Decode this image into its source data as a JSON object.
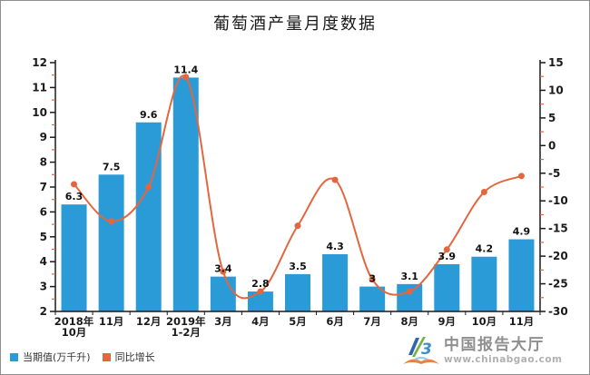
{
  "watermark": {
    "name": "中国报告大厅",
    "url": "www.chinabgao.com"
  },
  "colors": {
    "bar": "#2b9bd8",
    "line": "#e2673f",
    "axis": "#1a1a1a",
    "minor_tick": "#e8604c",
    "bar_label": "#111111",
    "tick_label": "#1a1a1a",
    "legend_text": "#333333",
    "logo_blue": "#2e66ae",
    "logo_green": "#76b043",
    "logo_light_blue": "#8ecfe8",
    "logo_orange": "#ef8140",
    "border": "#8f8f8f"
  },
  "chart_data": {
    "type": "bar+line",
    "title": "葡萄酒产量月度数据",
    "categories": [
      "2018年\n10月",
      "11月",
      "12月",
      "2019年\n1-2月",
      "3月",
      "4月",
      "5月",
      "6月",
      "7月",
      "8月",
      "9月",
      "10月",
      "11月"
    ],
    "series": [
      {
        "name": "当期值(万千升)",
        "type": "bar",
        "axis": "left",
        "color": "#2b9bd8",
        "values": [
          6.3,
          7.5,
          9.6,
          11.4,
          3.4,
          2.8,
          3.5,
          4.3,
          3,
          3.1,
          3.9,
          4.2,
          4.9
        ]
      },
      {
        "name": "同比增长",
        "type": "line",
        "axis": "right",
        "color": "#e2673f",
        "values": [
          -7,
          -13.7,
          -7.5,
          12.4,
          -22.8,
          -26.4,
          -14.5,
          -6.2,
          -24.2,
          -26.4,
          -18.8,
          -8.4,
          -5.5
        ]
      }
    ],
    "legend": [
      "当期值(万千升)",
      "同比增长"
    ],
    "legend_position": "bottom-left",
    "grid": false,
    "left_axis": {
      "min": 2,
      "max": 12,
      "step": 1,
      "minor_step": 0.5,
      "ticks": [
        2,
        3,
        4,
        5,
        6,
        7,
        8,
        9,
        10,
        11,
        12
      ]
    },
    "right_axis": {
      "min": -30,
      "max": 15,
      "step": 5,
      "minor_step": 2.5,
      "ticks": [
        -30,
        -25,
        -20,
        -15,
        -10,
        -5,
        0,
        5,
        10,
        15
      ]
    }
  }
}
